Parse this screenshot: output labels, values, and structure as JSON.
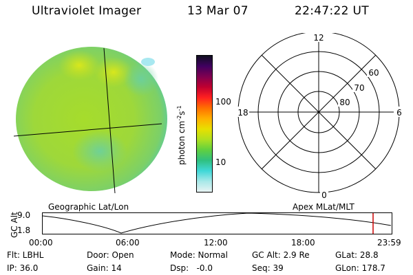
{
  "header": {
    "title": "Ultraviolet Imager",
    "date": "13 Mar 07",
    "time": "22:47:22 UT"
  },
  "colorbar": {
    "label": "photon cm-2s-1",
    "ticks": [
      "100",
      "10"
    ],
    "colors": [
      "#e8f4f4",
      "#a8e8e8",
      "#40d8d8",
      "#30c080",
      "#60d040",
      "#b0e020",
      "#e8e000",
      "#ffb000",
      "#ff7000",
      "#ff2020",
      "#c00030",
      "#800050",
      "#400060",
      "#101020"
    ]
  },
  "polar": {
    "mlt_labels": [
      "12",
      "18",
      "6",
      "0"
    ],
    "lat_labels": [
      "60",
      "70",
      "80"
    ]
  },
  "map_labels": {
    "left": "Geographic Lat/Lon",
    "right": "Apex MLat/MLT"
  },
  "altitude_panel": {
    "ylabel": "GC Alt",
    "yticks": [
      "9.0",
      "1.8"
    ],
    "xticks": [
      "00:00",
      "06:00",
      "12:00",
      "18:00",
      "23:59"
    ],
    "marker_color": "#cc0000"
  },
  "info": {
    "row1": {
      "flt": "Flt: LBHL",
      "door": "Door: Open",
      "mode": "Mode: Normal",
      "gc_alt": "GC Alt: 2.9 Re",
      "glat": "GLat: 28.8"
    },
    "row2": {
      "ip": "IP: 36.0",
      "gain": "Gain: 14",
      "dsp": "Dsp:   -0.0",
      "seq": "Seq: 39",
      "glon": "GLon: 178.7"
    }
  }
}
